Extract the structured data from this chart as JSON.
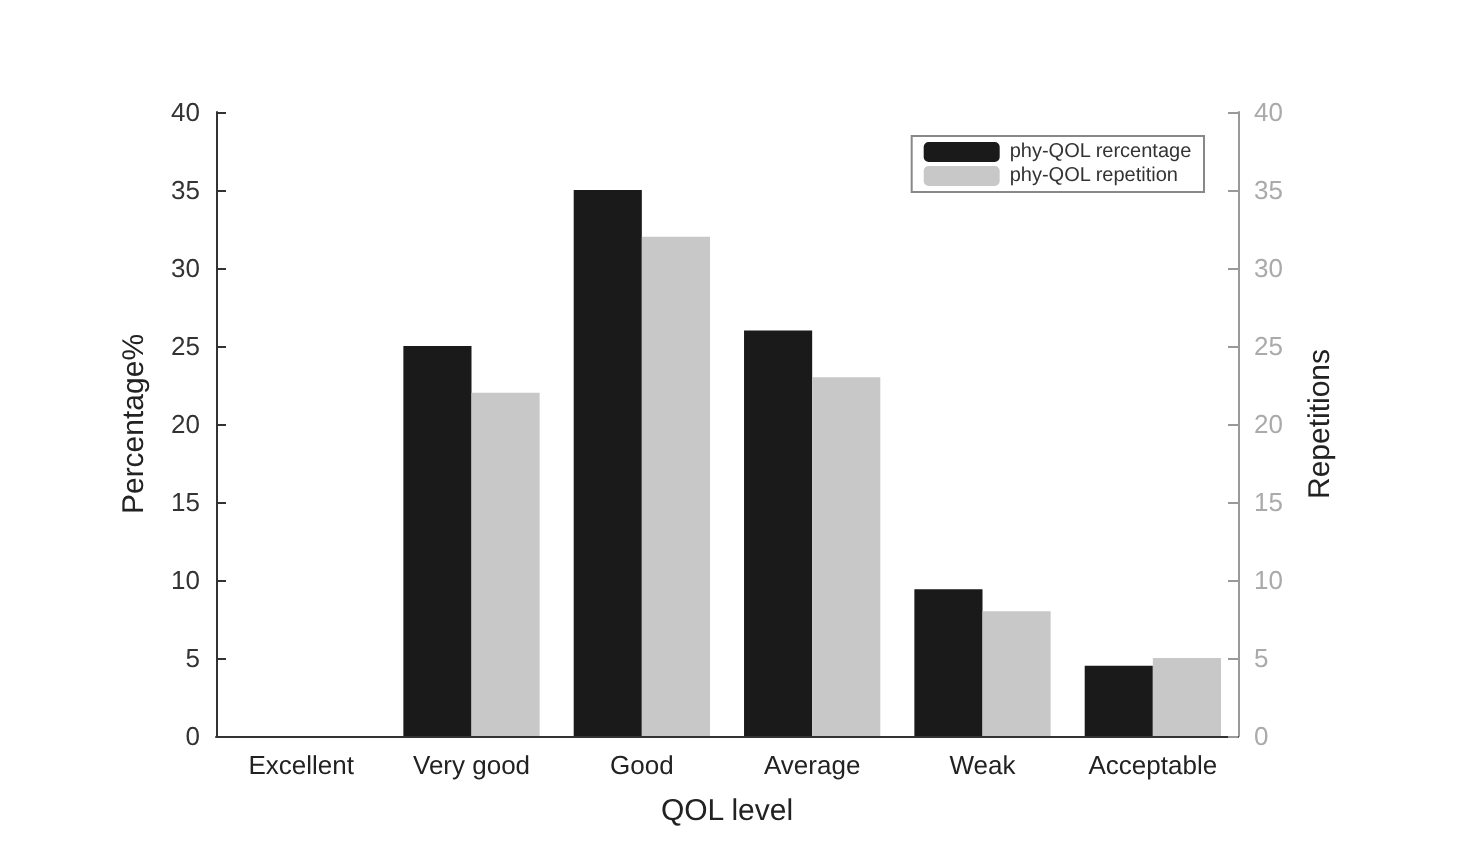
{
  "chart_data": {
    "type": "bar",
    "xlabel": "QOL level",
    "ylabel": "Percentage%",
    "y2label": "Repetitions",
    "categories": [
      "Excellent",
      "Very good",
      "Good",
      "Average",
      "Weak",
      "Acceptable"
    ],
    "series": [
      {
        "name": "phy-QOL rercentage",
        "color": "#1a1a1a",
        "values": [
          0,
          25,
          35,
          26,
          9.4,
          4.5
        ]
      },
      {
        "name": "phy-QOL repetition",
        "color": "#c8c8c8",
        "values": [
          0,
          22,
          32,
          23,
          8,
          5
        ]
      }
    ],
    "ylim": [
      0,
      40
    ],
    "yticks": [
      0,
      5,
      10,
      15,
      20,
      25,
      30,
      35,
      40
    ],
    "y2lim": [
      0,
      40
    ],
    "y2ticks": [
      0,
      5,
      10,
      15,
      20,
      25,
      30,
      35,
      40
    ],
    "grid": false,
    "legend": "top right"
  }
}
